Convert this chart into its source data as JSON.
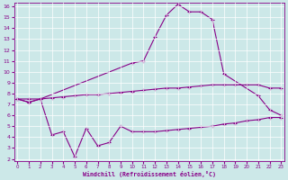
{
  "line1_x": [
    0,
    1,
    2,
    10,
    11,
    12,
    13,
    14,
    15,
    16,
    17,
    18,
    21,
    22,
    23
  ],
  "line1_y": [
    7.5,
    7.2,
    7.5,
    10.8,
    11.0,
    13.2,
    15.2,
    16.2,
    15.5,
    15.5,
    14.8,
    9.8,
    7.8,
    6.5,
    6.0
  ],
  "line2_x": [
    0,
    1,
    2,
    3,
    4,
    5,
    6,
    7,
    8,
    9,
    10,
    11,
    12,
    13,
    14,
    15,
    16,
    17,
    18,
    19,
    20,
    21,
    22,
    23
  ],
  "line2_y": [
    7.5,
    7.5,
    7.5,
    7.6,
    7.7,
    7.8,
    7.9,
    7.9,
    8.0,
    8.1,
    8.2,
    8.3,
    8.4,
    8.5,
    8.5,
    8.6,
    8.7,
    8.8,
    8.8,
    8.8,
    8.8,
    8.8,
    8.5,
    8.5
  ],
  "line3_x": [
    0,
    1,
    2,
    3,
    4,
    5,
    6,
    7,
    8,
    9,
    10,
    11,
    12,
    13,
    14,
    15,
    16,
    17,
    18,
    19,
    20,
    21,
    22,
    23
  ],
  "line3_y": [
    7.5,
    7.2,
    7.5,
    4.2,
    4.5,
    2.2,
    4.8,
    3.2,
    3.5,
    5.0,
    4.5,
    4.5,
    4.5,
    4.6,
    4.7,
    4.8,
    4.9,
    5.0,
    5.2,
    5.3,
    5.5,
    5.6,
    5.8,
    5.8
  ],
  "line_color": "#880088",
  "bg_color": "#cce8e8",
  "grid_color": "#ffffff",
  "xlim": [
    -0.3,
    23.3
  ],
  "ylim": [
    1.8,
    16.3
  ],
  "xlabel": "Windchill (Refroidissement éolien,°C)",
  "xticks": [
    0,
    1,
    2,
    3,
    4,
    5,
    6,
    7,
    8,
    9,
    10,
    11,
    12,
    13,
    14,
    15,
    16,
    17,
    18,
    19,
    20,
    21,
    22,
    23
  ],
  "yticks": [
    2,
    3,
    4,
    5,
    6,
    7,
    8,
    9,
    10,
    11,
    12,
    13,
    14,
    15,
    16
  ]
}
